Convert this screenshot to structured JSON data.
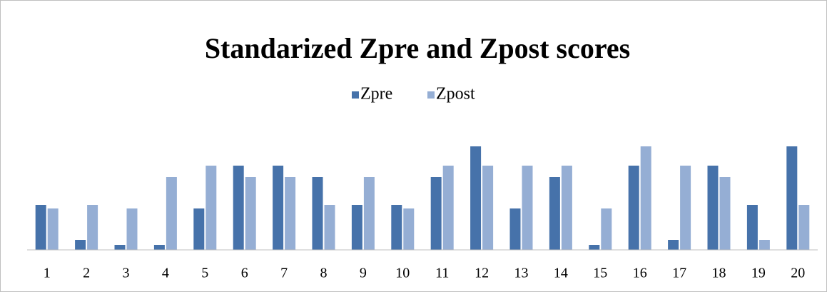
{
  "chart_data": {
    "type": "bar",
    "title": "Standarized Zpre and Zpost scores",
    "categories": [
      "1",
      "2",
      "3",
      "4",
      "5",
      "6",
      "7",
      "8",
      "9",
      "10",
      "11",
      "12",
      "13",
      "14",
      "15",
      "16",
      "17",
      "18",
      "19",
      "20"
    ],
    "series": [
      {
        "name": "Zpre",
        "color": "#4672aa",
        "values": [
          63,
          14,
          7,
          7,
          58,
          118,
          118,
          102,
          63,
          63,
          102,
          145,
          58,
          102,
          7,
          118,
          14,
          118,
          63,
          145
        ]
      },
      {
        "name": "Zpost",
        "color": "#95aed4",
        "values": [
          58,
          63,
          58,
          102,
          118,
          102,
          102,
          63,
          102,
          58,
          118,
          118,
          118,
          118,
          58,
          145,
          118,
          102,
          14,
          63
        ]
      }
    ],
    "ylim": [
      0,
      145
    ],
    "legend": "top"
  }
}
